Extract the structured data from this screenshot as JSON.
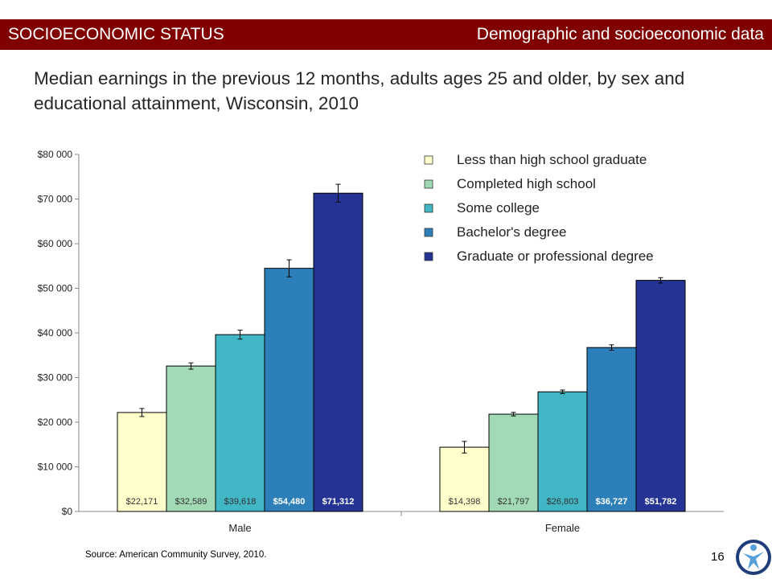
{
  "header": {
    "section": "SOCIOECONOMIC STATUS",
    "topic": "Demographic and socioeconomic data"
  },
  "title": "Median earnings in the previous 12 months, adults ages 25 and older,  by sex and educational attainment, Wisconsin, 2010",
  "source": "Source: American Community Survey, 2010.",
  "page_number": "16",
  "chart_data": {
    "type": "bar",
    "categories": [
      "Male",
      "Female"
    ],
    "ylim": [
      0,
      80000
    ],
    "y_ticks": [
      {
        "value": 0,
        "label": "$0"
      },
      {
        "value": 10000,
        "label": "$10 000"
      },
      {
        "value": 20000,
        "label": "$20 000"
      },
      {
        "value": 30000,
        "label": "$30 000"
      },
      {
        "value": 40000,
        "label": "$40 000"
      },
      {
        "value": 50000,
        "label": "$50 000"
      },
      {
        "value": 60000,
        "label": "$60 000"
      },
      {
        "value": 70000,
        "label": "$70 000"
      },
      {
        "value": 80000,
        "label": "$80 000"
      }
    ],
    "legend_position": "top-right",
    "grid": false,
    "series": [
      {
        "name": "Less than high school graduate",
        "color": "#ffffcc",
        "label_color": "#333333",
        "values": [
          22171,
          14398
        ],
        "labels": [
          "$22,171",
          "$14,398"
        ],
        "error": [
          900,
          1300
        ]
      },
      {
        "name": "Completed high school",
        "color": "#a1dab4",
        "label_color": "#333333",
        "values": [
          32589,
          21797
        ],
        "labels": [
          "$32,589",
          "$21,797"
        ],
        "error": [
          700,
          400
        ]
      },
      {
        "name": "Some college",
        "color": "#41b6c4",
        "label_color": "#333333",
        "values": [
          39618,
          26803
        ],
        "labels": [
          "$39,618",
          "$26,803"
        ],
        "error": [
          1000,
          400
        ]
      },
      {
        "name": "Bachelor's degree",
        "color": "#2c7fb8",
        "label_color": "#ffffff",
        "values": [
          54480,
          36727
        ],
        "labels": [
          "$54,480",
          "$36,727"
        ],
        "error": [
          1900,
          600
        ]
      },
      {
        "name": "Graduate or professional degree",
        "color": "#253494",
        "label_color": "#ffffff",
        "values": [
          71312,
          51782
        ],
        "labels": [
          "$71,312",
          "$51,782"
        ],
        "error": [
          2000,
          600
        ]
      }
    ]
  }
}
